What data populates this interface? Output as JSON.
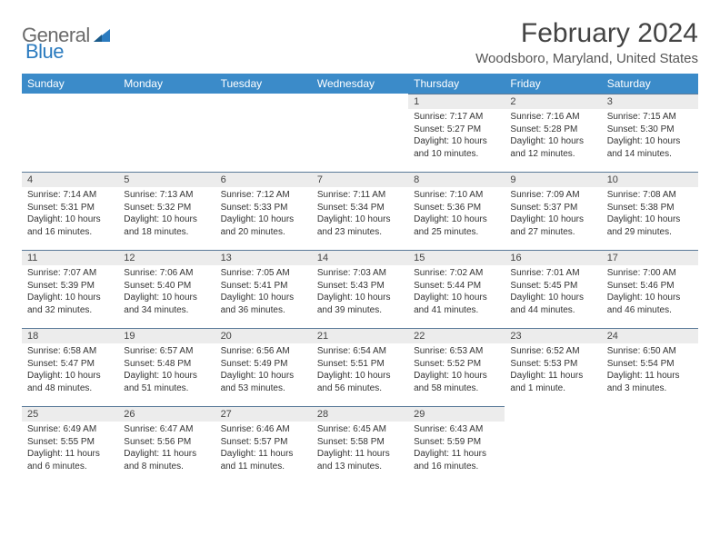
{
  "brand": {
    "part1": "General",
    "part2": "Blue"
  },
  "title": "February 2024",
  "location": "Woodsboro, Maryland, United States",
  "colors": {
    "header_bg": "#3b8bc9",
    "header_text": "#ffffff",
    "daynum_bg": "#ececec",
    "day_border": "#5a7a99",
    "brand_gray": "#6b6b6b",
    "brand_blue": "#2b7bbf"
  },
  "weekdays": [
    "Sunday",
    "Monday",
    "Tuesday",
    "Wednesday",
    "Thursday",
    "Friday",
    "Saturday"
  ],
  "weeks": [
    [
      null,
      null,
      null,
      null,
      {
        "n": "1",
        "sunrise": "Sunrise: 7:17 AM",
        "sunset": "Sunset: 5:27 PM",
        "daylight": "Daylight: 10 hours and 10 minutes."
      },
      {
        "n": "2",
        "sunrise": "Sunrise: 7:16 AM",
        "sunset": "Sunset: 5:28 PM",
        "daylight": "Daylight: 10 hours and 12 minutes."
      },
      {
        "n": "3",
        "sunrise": "Sunrise: 7:15 AM",
        "sunset": "Sunset: 5:30 PM",
        "daylight": "Daylight: 10 hours and 14 minutes."
      }
    ],
    [
      {
        "n": "4",
        "sunrise": "Sunrise: 7:14 AM",
        "sunset": "Sunset: 5:31 PM",
        "daylight": "Daylight: 10 hours and 16 minutes."
      },
      {
        "n": "5",
        "sunrise": "Sunrise: 7:13 AM",
        "sunset": "Sunset: 5:32 PM",
        "daylight": "Daylight: 10 hours and 18 minutes."
      },
      {
        "n": "6",
        "sunrise": "Sunrise: 7:12 AM",
        "sunset": "Sunset: 5:33 PM",
        "daylight": "Daylight: 10 hours and 20 minutes."
      },
      {
        "n": "7",
        "sunrise": "Sunrise: 7:11 AM",
        "sunset": "Sunset: 5:34 PM",
        "daylight": "Daylight: 10 hours and 23 minutes."
      },
      {
        "n": "8",
        "sunrise": "Sunrise: 7:10 AM",
        "sunset": "Sunset: 5:36 PM",
        "daylight": "Daylight: 10 hours and 25 minutes."
      },
      {
        "n": "9",
        "sunrise": "Sunrise: 7:09 AM",
        "sunset": "Sunset: 5:37 PM",
        "daylight": "Daylight: 10 hours and 27 minutes."
      },
      {
        "n": "10",
        "sunrise": "Sunrise: 7:08 AM",
        "sunset": "Sunset: 5:38 PM",
        "daylight": "Daylight: 10 hours and 29 minutes."
      }
    ],
    [
      {
        "n": "11",
        "sunrise": "Sunrise: 7:07 AM",
        "sunset": "Sunset: 5:39 PM",
        "daylight": "Daylight: 10 hours and 32 minutes."
      },
      {
        "n": "12",
        "sunrise": "Sunrise: 7:06 AM",
        "sunset": "Sunset: 5:40 PM",
        "daylight": "Daylight: 10 hours and 34 minutes."
      },
      {
        "n": "13",
        "sunrise": "Sunrise: 7:05 AM",
        "sunset": "Sunset: 5:41 PM",
        "daylight": "Daylight: 10 hours and 36 minutes."
      },
      {
        "n": "14",
        "sunrise": "Sunrise: 7:03 AM",
        "sunset": "Sunset: 5:43 PM",
        "daylight": "Daylight: 10 hours and 39 minutes."
      },
      {
        "n": "15",
        "sunrise": "Sunrise: 7:02 AM",
        "sunset": "Sunset: 5:44 PM",
        "daylight": "Daylight: 10 hours and 41 minutes."
      },
      {
        "n": "16",
        "sunrise": "Sunrise: 7:01 AM",
        "sunset": "Sunset: 5:45 PM",
        "daylight": "Daylight: 10 hours and 44 minutes."
      },
      {
        "n": "17",
        "sunrise": "Sunrise: 7:00 AM",
        "sunset": "Sunset: 5:46 PM",
        "daylight": "Daylight: 10 hours and 46 minutes."
      }
    ],
    [
      {
        "n": "18",
        "sunrise": "Sunrise: 6:58 AM",
        "sunset": "Sunset: 5:47 PM",
        "daylight": "Daylight: 10 hours and 48 minutes."
      },
      {
        "n": "19",
        "sunrise": "Sunrise: 6:57 AM",
        "sunset": "Sunset: 5:48 PM",
        "daylight": "Daylight: 10 hours and 51 minutes."
      },
      {
        "n": "20",
        "sunrise": "Sunrise: 6:56 AM",
        "sunset": "Sunset: 5:49 PM",
        "daylight": "Daylight: 10 hours and 53 minutes."
      },
      {
        "n": "21",
        "sunrise": "Sunrise: 6:54 AM",
        "sunset": "Sunset: 5:51 PM",
        "daylight": "Daylight: 10 hours and 56 minutes."
      },
      {
        "n": "22",
        "sunrise": "Sunrise: 6:53 AM",
        "sunset": "Sunset: 5:52 PM",
        "daylight": "Daylight: 10 hours and 58 minutes."
      },
      {
        "n": "23",
        "sunrise": "Sunrise: 6:52 AM",
        "sunset": "Sunset: 5:53 PM",
        "daylight": "Daylight: 11 hours and 1 minute."
      },
      {
        "n": "24",
        "sunrise": "Sunrise: 6:50 AM",
        "sunset": "Sunset: 5:54 PM",
        "daylight": "Daylight: 11 hours and 3 minutes."
      }
    ],
    [
      {
        "n": "25",
        "sunrise": "Sunrise: 6:49 AM",
        "sunset": "Sunset: 5:55 PM",
        "daylight": "Daylight: 11 hours and 6 minutes."
      },
      {
        "n": "26",
        "sunrise": "Sunrise: 6:47 AM",
        "sunset": "Sunset: 5:56 PM",
        "daylight": "Daylight: 11 hours and 8 minutes."
      },
      {
        "n": "27",
        "sunrise": "Sunrise: 6:46 AM",
        "sunset": "Sunset: 5:57 PM",
        "daylight": "Daylight: 11 hours and 11 minutes."
      },
      {
        "n": "28",
        "sunrise": "Sunrise: 6:45 AM",
        "sunset": "Sunset: 5:58 PM",
        "daylight": "Daylight: 11 hours and 13 minutes."
      },
      {
        "n": "29",
        "sunrise": "Sunrise: 6:43 AM",
        "sunset": "Sunset: 5:59 PM",
        "daylight": "Daylight: 11 hours and 16 minutes."
      },
      null,
      null
    ]
  ]
}
